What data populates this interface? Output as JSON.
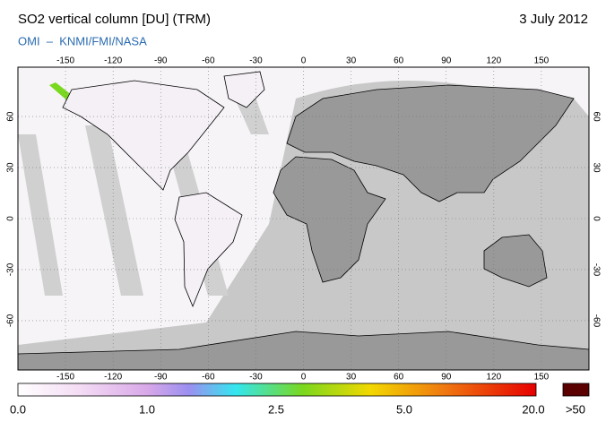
{
  "header": {
    "title": "SO2 vertical column [DU] (TRM)",
    "date": "3 July 2012",
    "subtitle": "OMI  –  KNMI/FMI/NASA"
  },
  "map": {
    "lon_ticks": [
      -150,
      -120,
      -90,
      -60,
      -30,
      0,
      30,
      60,
      90,
      120,
      150
    ],
    "lat_ticks": [
      60,
      30,
      0,
      -30,
      -60
    ]
  },
  "colorbar": {
    "labels": [
      "0.0",
      "1.0",
      "2.5",
      "5.0",
      "20.0",
      ">50"
    ]
  }
}
